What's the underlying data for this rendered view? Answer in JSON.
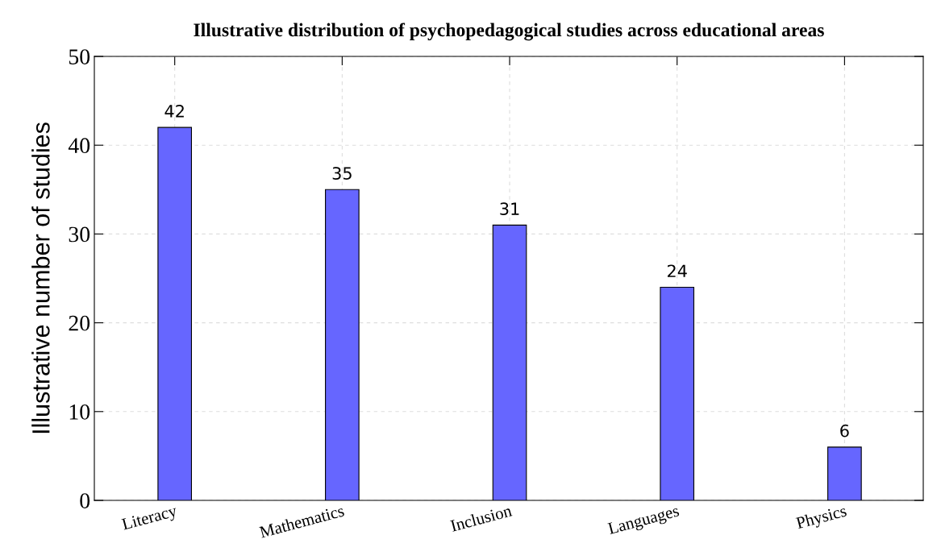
{
  "chart_data": {
    "type": "bar",
    "title": "Illustrative distribution of psychopedagogical studies across educational areas",
    "ylabel": "Illustrative number of studies",
    "categories": [
      "Literacy",
      "Mathematics",
      "Inclusion",
      "Languages",
      "Physics"
    ],
    "values": [
      42,
      35,
      31,
      24,
      6
    ],
    "color": "#6666ff",
    "ylim": [
      0,
      50
    ],
    "yticks": [
      0,
      10,
      20,
      30,
      40,
      50
    ],
    "grid": true,
    "data_labels": true
  }
}
